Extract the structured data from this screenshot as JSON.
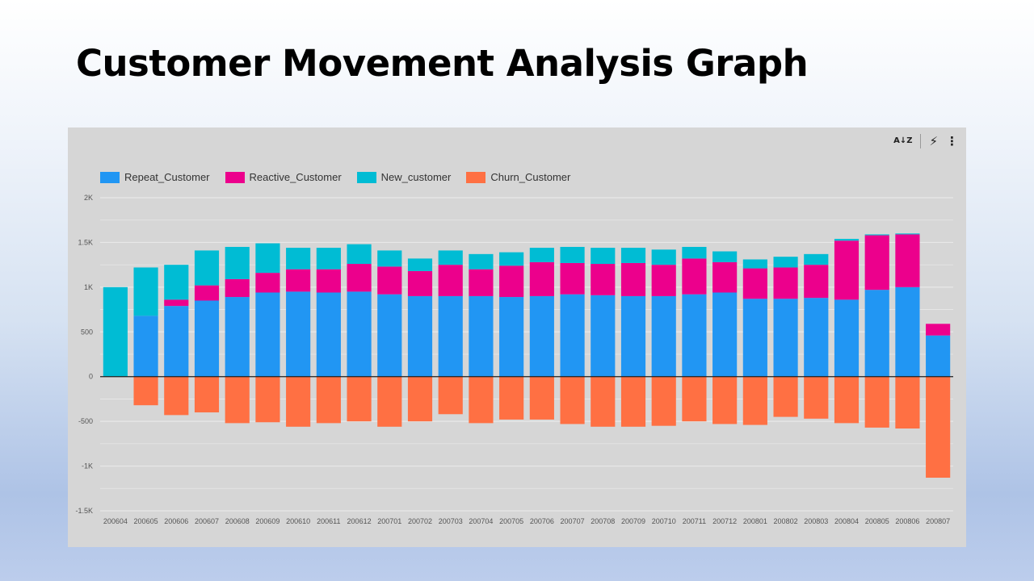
{
  "slide": {
    "title": "Customer Movement Analysis Graph"
  },
  "toolbar": {
    "sort_icon": "sort-az-icon",
    "insights_icon": "lightning-bolt-icon",
    "more_icon": "more-vertical-icon"
  },
  "colors": {
    "Repeat_Customer": "#2196f3",
    "Reactive_Customer": "#ec008c",
    "New_customer": "#00bcd4",
    "Churn_Customer": "#ff7043",
    "grid": "#e8e8e8",
    "zero_line": "#202020"
  },
  "chart_data": {
    "type": "bar",
    "stacked": true,
    "categories": [
      "200604",
      "200605",
      "200606",
      "200607",
      "200608",
      "200609",
      "200610",
      "200611",
      "200612",
      "200701",
      "200702",
      "200703",
      "200704",
      "200705",
      "200706",
      "200707",
      "200708",
      "200709",
      "200710",
      "200711",
      "200712",
      "200801",
      "200802",
      "200803",
      "200804",
      "200805",
      "200806",
      "200807"
    ],
    "series": [
      {
        "name": "Repeat_Customer",
        "values": [
          0,
          680,
          790,
          850,
          890,
          940,
          950,
          940,
          950,
          920,
          900,
          900,
          900,
          890,
          900,
          920,
          910,
          900,
          900,
          920,
          940,
          870,
          870,
          880,
          860,
          970,
          1000,
          460
        ]
      },
      {
        "name": "Reactive_Customer",
        "values": [
          0,
          0,
          70,
          170,
          200,
          220,
          250,
          260,
          310,
          310,
          280,
          350,
          300,
          350,
          380,
          350,
          350,
          370,
          350,
          400,
          340,
          340,
          350,
          370,
          660,
          610,
          590,
          130
        ]
      },
      {
        "name": "New_customer",
        "values": [
          1000,
          540,
          390,
          390,
          360,
          330,
          240,
          240,
          220,
          180,
          140,
          160,
          170,
          150,
          160,
          180,
          180,
          170,
          170,
          130,
          120,
          100,
          120,
          120,
          20,
          10,
          10,
          0
        ]
      },
      {
        "name": "Churn_Customer",
        "values": [
          0,
          -320,
          -430,
          -400,
          -520,
          -510,
          -560,
          -520,
          -500,
          -560,
          -500,
          -420,
          -520,
          -480,
          -480,
          -530,
          -560,
          -560,
          -550,
          -500,
          -530,
          -540,
          -450,
          -470,
          -520,
          -570,
          -580,
          -1130
        ]
      }
    ],
    "y_ticks": [
      "2K",
      "1.5K",
      "1K",
      "500",
      "0",
      "-500",
      "-1K",
      "-1.5K"
    ],
    "ylim": [
      -1500,
      2000
    ],
    "legend_position": "top-left",
    "grid": true
  }
}
